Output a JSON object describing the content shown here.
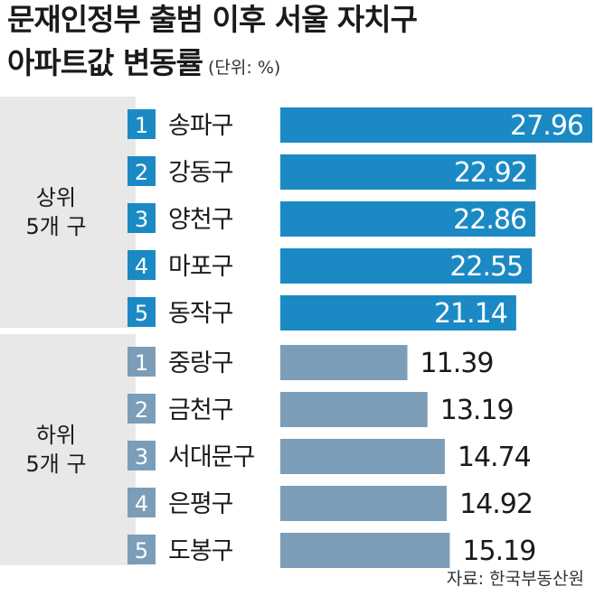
{
  "title": {
    "line1": "문재인정부 출범 이후 서울 자치구",
    "line2": "아파트값 변동률",
    "unit": "(단위: %)"
  },
  "source": "자료: 한국부동산원",
  "colors": {
    "top_bar": "#1b8ac4",
    "bottom_bar": "#7c9db7",
    "group_bg": "#e8e8e8"
  },
  "chart_data": {
    "type": "bar",
    "orientation": "horizontal",
    "groups": [
      {
        "label_line1": "상위",
        "label_line2": "5개 구",
        "color": "#1b8ac4",
        "ranks": [
          "1",
          "2",
          "3",
          "4",
          "5"
        ],
        "categories": [
          "송파구",
          "강동구",
          "양천구",
          "마포구",
          "동작구"
        ],
        "values": [
          27.96,
          22.92,
          22.86,
          22.55,
          21.14
        ],
        "value_labels": [
          "27.96",
          "22.92",
          "22.86",
          "22.55",
          "21.14"
        ]
      },
      {
        "label_line1": "하위",
        "label_line2": "5개 구",
        "color": "#7c9db7",
        "ranks": [
          "1",
          "2",
          "3",
          "4",
          "5"
        ],
        "categories": [
          "중랑구",
          "금천구",
          "서대문구",
          "은평구",
          "도봉구"
        ],
        "values": [
          11.39,
          13.19,
          14.74,
          14.92,
          15.19
        ],
        "value_labels": [
          "11.39",
          "13.19",
          "14.74",
          "14.92",
          "15.19"
        ]
      }
    ],
    "xlim": [
      0,
      27.96
    ]
  }
}
